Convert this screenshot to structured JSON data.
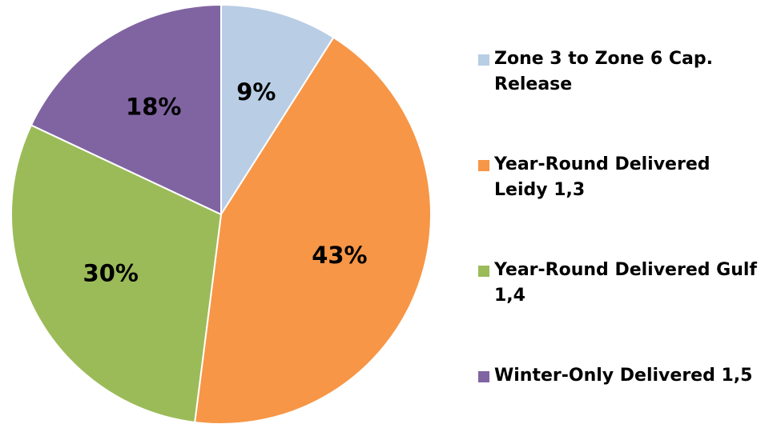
{
  "chart_data": {
    "type": "pie",
    "categories": [
      "Zone 3 to Zone 6 Cap. Release",
      "Year-Round Delivered Leidy 1,3",
      "Year-Round Delivered Gulf 1,4",
      "Winter-Only Delivered 1,5"
    ],
    "values": [
      9,
      43,
      30,
      18
    ],
    "value_labels": [
      "9%",
      "43%",
      "30%",
      "18%"
    ],
    "colors": [
      "#b9cde5",
      "#f79646",
      "#9bbb59",
      "#8064a2"
    ],
    "legend": "right"
  }
}
